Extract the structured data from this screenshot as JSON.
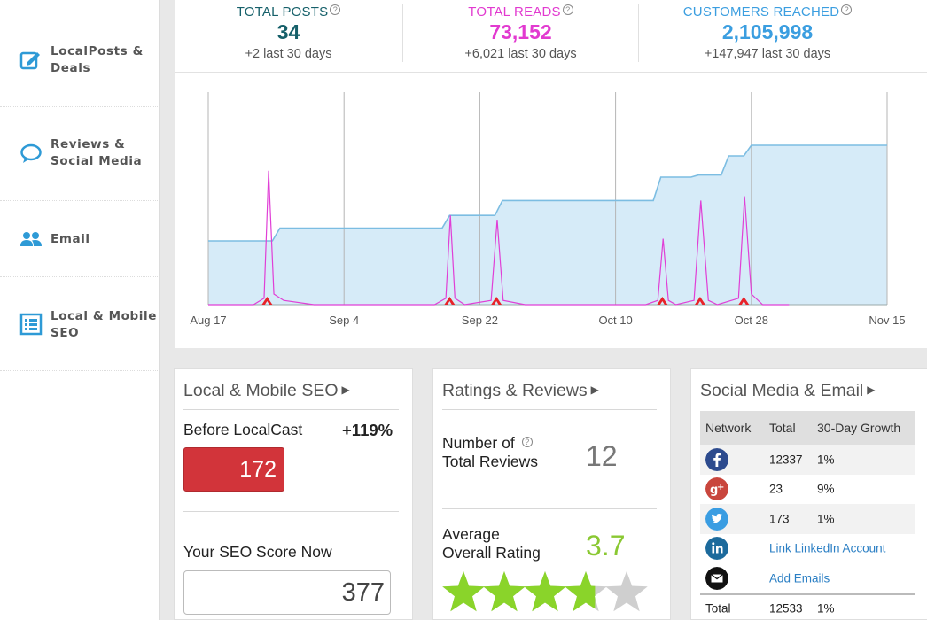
{
  "sidebar": {
    "items": [
      {
        "label_line1": "LocalPosts &",
        "label_line2": "Deals",
        "icon": "edit-post-icon"
      },
      {
        "label_line1": "Reviews &",
        "label_line2": "Social Media",
        "icon": "speech-bubble-icon"
      },
      {
        "label_line1": "Email",
        "label_line2": "",
        "icon": "users-icon"
      },
      {
        "label_line1": "Local & Mobile",
        "label_line2": "SEO",
        "icon": "list-icon"
      }
    ]
  },
  "stats": {
    "total_posts": {
      "title": "TOTAL POSTS",
      "value": "34",
      "sub": "+2 last 30 days",
      "color": "#16606a"
    },
    "total_reads": {
      "title": "TOTAL READS",
      "value": "73,152",
      "sub": "+6,021 last 30 days",
      "color": "#e23ad0"
    },
    "customers_reached": {
      "title": "CUSTOMERS REACHED",
      "value": "2,105,998",
      "sub": "+147,947 last 30 days",
      "color": "#3b9ee0"
    }
  },
  "chart_data": {
    "type": "area",
    "x_ticks": [
      "Aug 17",
      "Sep 4",
      "Sep 22",
      "Oct 10",
      "Oct 28",
      "Nov 15"
    ],
    "customers_series": [
      [
        0,
        0.3
      ],
      [
        8.5,
        0.3
      ],
      [
        9.5,
        0.36
      ],
      [
        31,
        0.36
      ],
      [
        32,
        0.42
      ],
      [
        38,
        0.42
      ],
      [
        39,
        0.49
      ],
      [
        59,
        0.49
      ],
      [
        60,
        0.6
      ],
      [
        64,
        0.6
      ],
      [
        65,
        0.61
      ],
      [
        68,
        0.61
      ],
      [
        69,
        0.7
      ],
      [
        71,
        0.7
      ],
      [
        72,
        0.75
      ],
      [
        90,
        0.75
      ]
    ],
    "reads_series": [
      [
        0,
        0.0
      ],
      [
        6,
        0.0
      ],
      [
        7.4,
        0.03
      ],
      [
        8.0,
        0.63
      ],
      [
        8.7,
        0.05
      ],
      [
        10,
        0.02
      ],
      [
        14,
        0.0
      ],
      [
        30,
        0.0
      ],
      [
        31.5,
        0.03
      ],
      [
        32.1,
        0.42
      ],
      [
        32.7,
        0.03
      ],
      [
        34,
        0.0
      ],
      [
        37.5,
        0.02
      ],
      [
        38.3,
        0.4
      ],
      [
        39.1,
        0.02
      ],
      [
        42,
        0.0
      ],
      [
        58,
        0.0
      ],
      [
        59.6,
        0.02
      ],
      [
        60.3,
        0.31
      ],
      [
        61,
        0.02
      ],
      [
        62,
        0.0
      ],
      [
        64.4,
        0.02
      ],
      [
        65.3,
        0.49
      ],
      [
        66.3,
        0.02
      ],
      [
        67.5,
        0.0
      ],
      [
        70.3,
        0.03
      ],
      [
        71.1,
        0.51
      ],
      [
        72,
        0.05
      ],
      [
        73.5,
        0.0
      ],
      [
        77,
        0.0
      ]
    ],
    "post_markers": [
      7.8,
      32.0,
      38.2,
      60.2,
      65.2,
      71.0
    ],
    "x_range": [
      0,
      90
    ],
    "colors": {
      "area_fill": "#d6ebf8",
      "area_line": "#7cbde2",
      "reads_line": "#e03fd6",
      "marker": "#e8232a",
      "grid": "#b5b5b5"
    }
  },
  "cards": {
    "seo": {
      "title": "Local & Mobile SEO",
      "before_label": "Before LocalCast",
      "pct": "+119%",
      "before_score": "172",
      "now_label": "Your SEO Score Now",
      "now_score": "377"
    },
    "ratings": {
      "title": "Ratings & Reviews",
      "reviews_label_1": "Number of",
      "reviews_label_2": "Total Reviews",
      "reviews_count": "12",
      "avg_label_1": "Average",
      "avg_label_2": "Overall Rating",
      "avg_rating": "3.7",
      "rating_value": 3.7,
      "rating_max": 5,
      "star_color": "#8ad42a"
    },
    "social": {
      "title": "Social Media & Email",
      "headers": {
        "network": "Network",
        "total": "Total",
        "growth": "30-Day Growth"
      },
      "rows": [
        {
          "icon": "facebook-icon",
          "total": "12337",
          "growth": "1%"
        },
        {
          "icon": "google-plus-icon",
          "total": "23",
          "growth": "9%"
        },
        {
          "icon": "twitter-icon",
          "total": "173",
          "growth": "1%"
        },
        {
          "icon": "linkedin-icon",
          "link": "Link LinkedIn Account"
        },
        {
          "icon": "email-icon",
          "link": "Add Emails"
        }
      ],
      "total_row": {
        "label": "Total",
        "total": "12533",
        "growth": "1%"
      }
    }
  }
}
